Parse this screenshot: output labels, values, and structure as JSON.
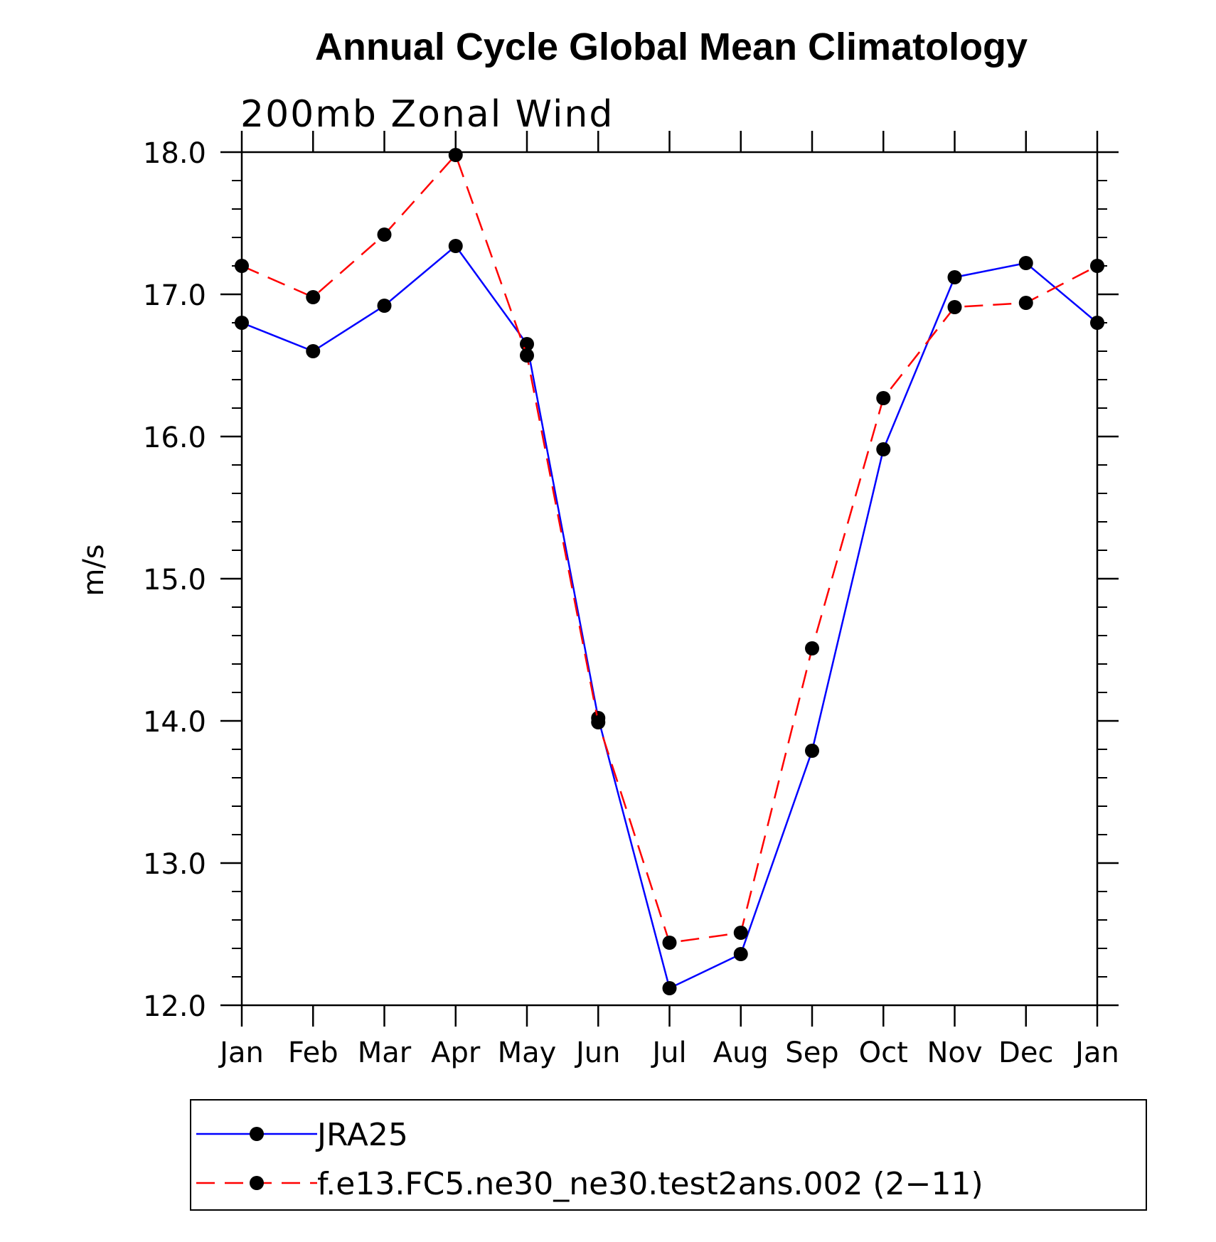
{
  "chart_data": {
    "type": "line",
    "title": "Annual Cycle Global Mean Climatology",
    "subtitle": "200mb Zonal Wind",
    "xlabel": "",
    "ylabel": "m/s",
    "categories": [
      "Jan",
      "Feb",
      "Mar",
      "Apr",
      "May",
      "Jun",
      "Jul",
      "Aug",
      "Sep",
      "Oct",
      "Nov",
      "Dec",
      "Jan"
    ],
    "ylim": [
      12.0,
      18.0
    ],
    "yticks": [
      "12.0",
      "13.0",
      "14.0",
      "15.0",
      "16.0",
      "17.0",
      "18.0"
    ],
    "series": [
      {
        "name": "JRA25",
        "color": "#0000ff",
        "dash": "solid",
        "values": [
          16.8,
          16.6,
          16.92,
          17.34,
          16.65,
          14.02,
          12.12,
          12.36,
          13.79,
          15.91,
          17.12,
          17.22,
          16.8
        ]
      },
      {
        "name": "f.e13.FC5.ne30_ne30.test2ans.002 (2−11)",
        "color": "#ff0000",
        "dash": "dashed",
        "values": [
          17.2,
          16.98,
          17.42,
          17.98,
          16.57,
          13.99,
          12.44,
          12.51,
          14.51,
          16.27,
          16.91,
          16.94,
          17.2
        ]
      }
    ],
    "legend_position": "bottom"
  }
}
